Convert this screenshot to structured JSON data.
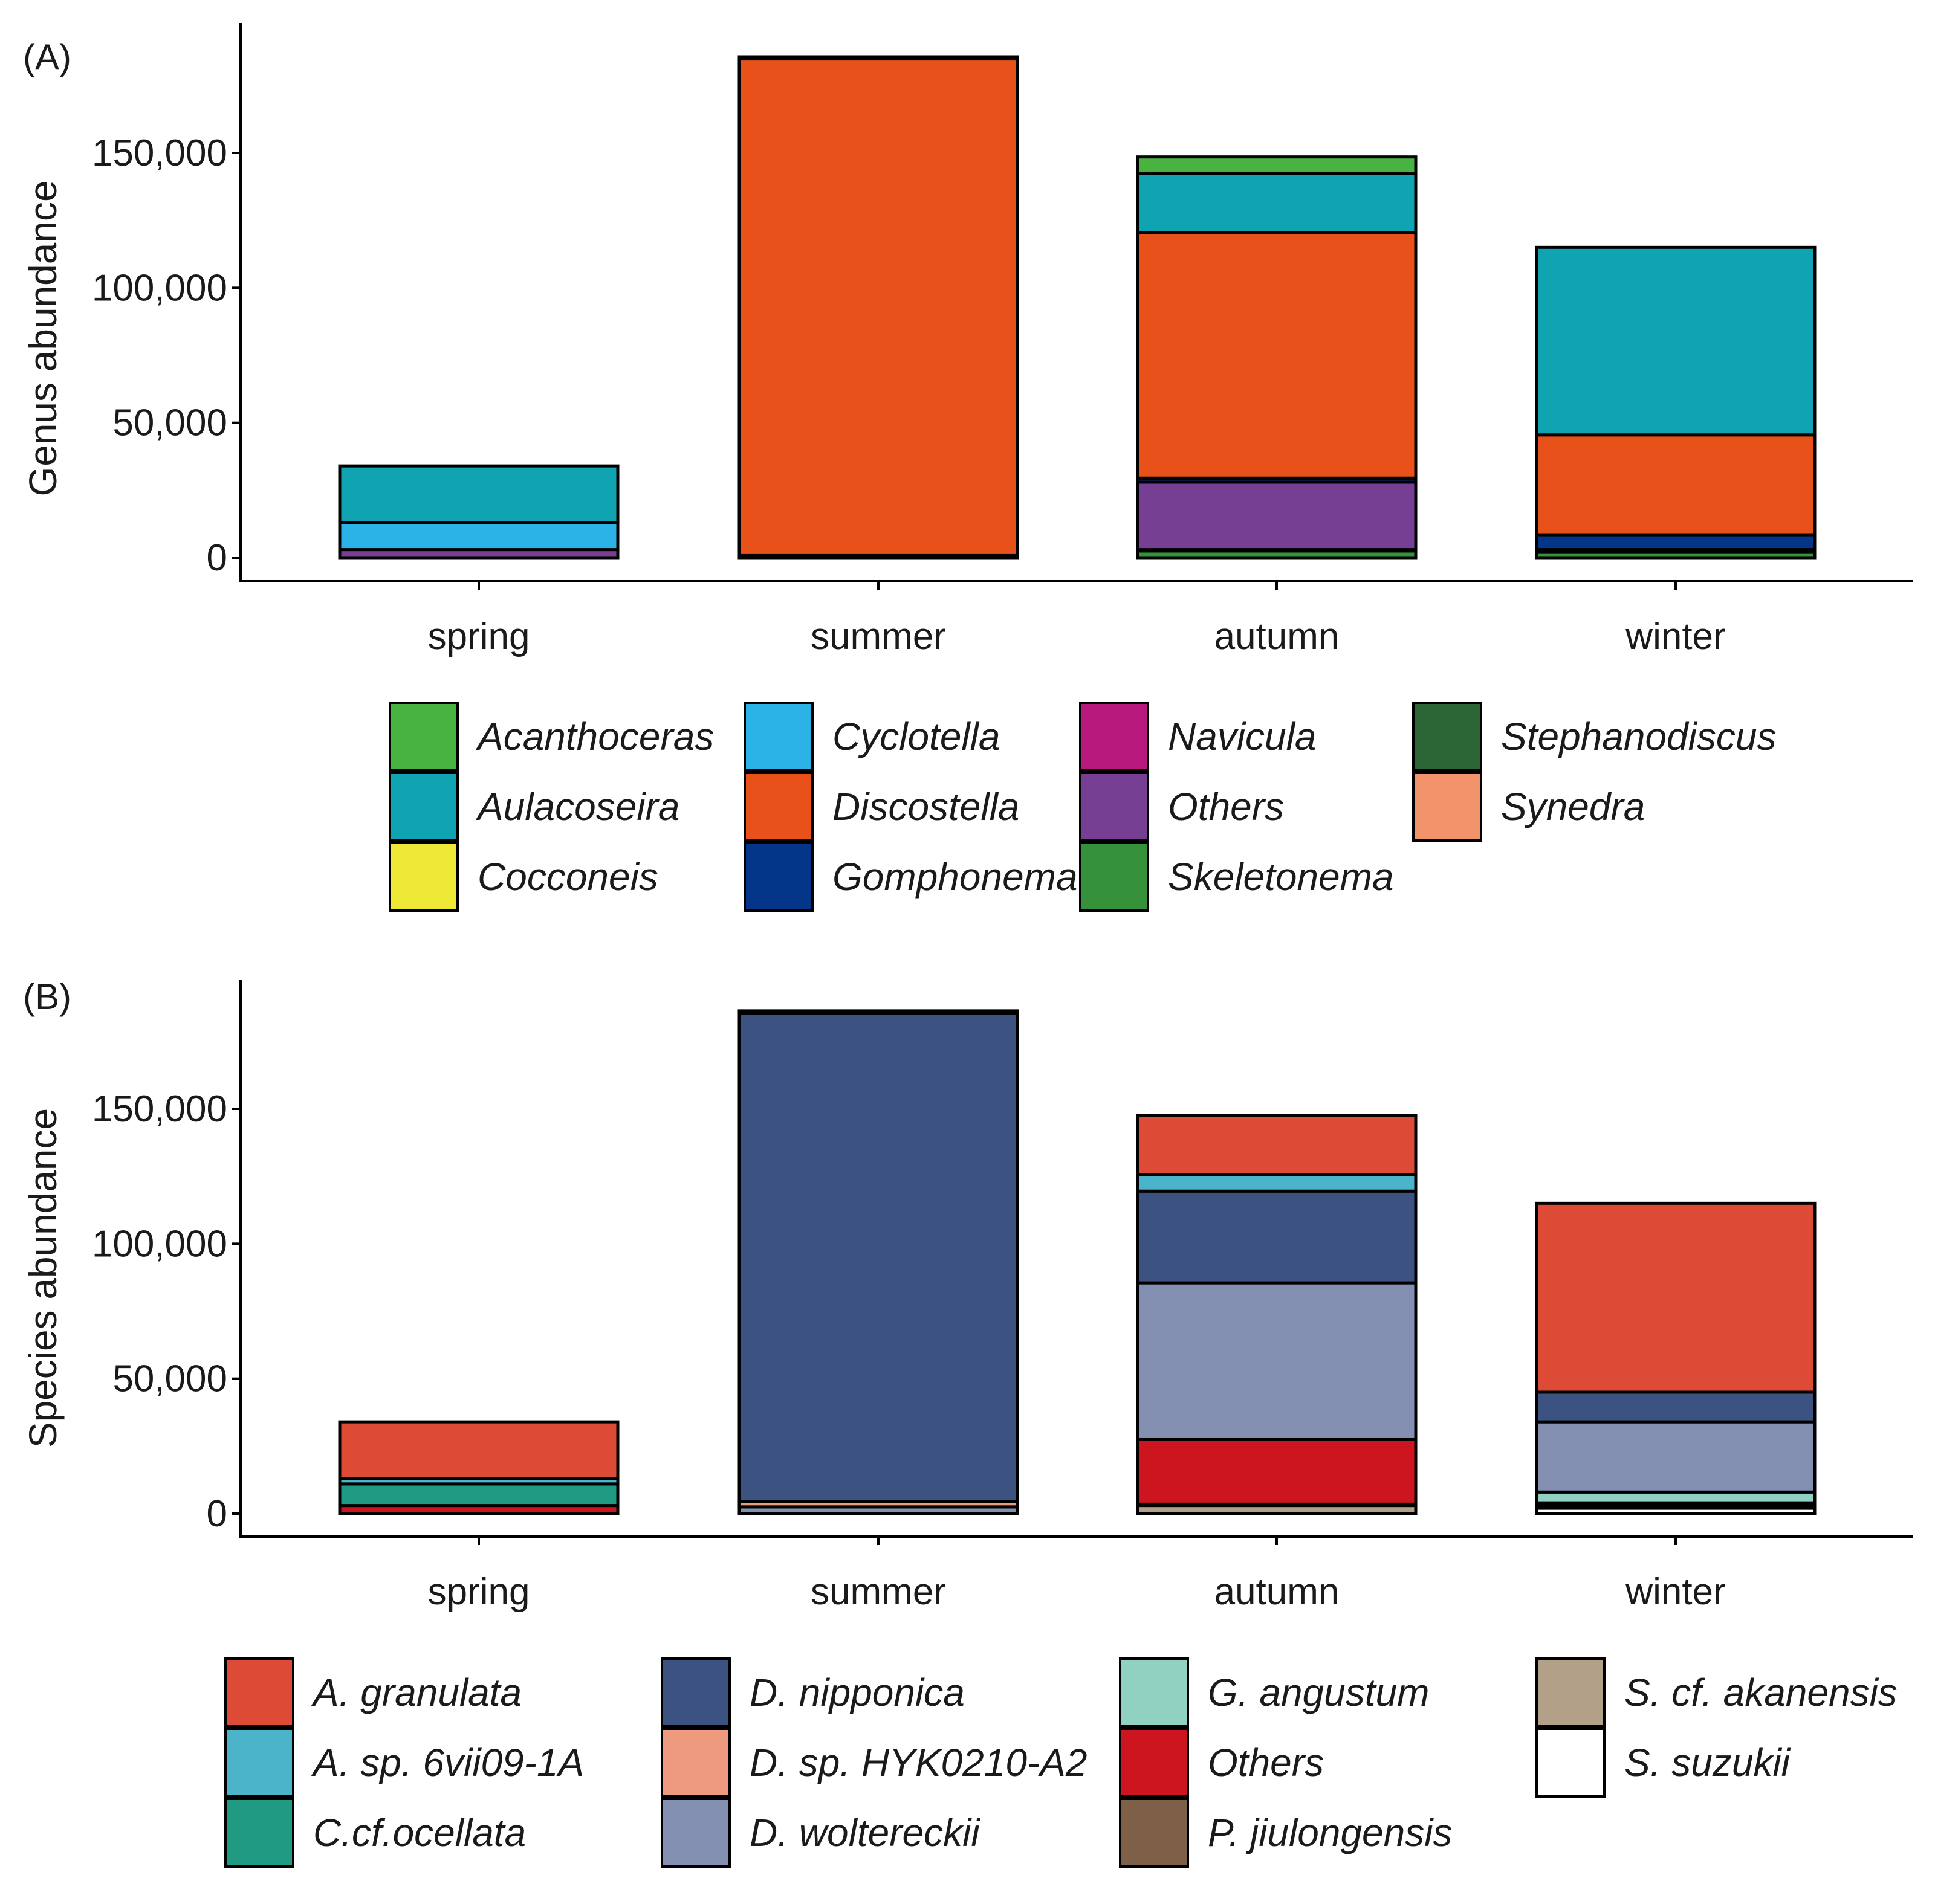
{
  "chart_data": [
    {
      "panel_label": "(A)",
      "type": "bar",
      "stacked": true,
      "ylabel": "Genus abundance",
      "xlabel": "",
      "categories": [
        "spring",
        "summer",
        "autumn",
        "winter"
      ],
      "ylim": [
        0,
        190000
      ],
      "yticks": [
        0,
        50000,
        100000,
        150000
      ],
      "ytick_labels": [
        "0",
        "50,000",
        "100,000",
        "150,000"
      ],
      "grid": false,
      "legend_position": "bottom",
      "series": [
        {
          "name": "Skeletonema",
          "color": "#35913A",
          "values": [
            0,
            0,
            2500,
            2000
          ]
        },
        {
          "name": "Stephanodiscus",
          "color": "#2B6535",
          "values": [
            0,
            0,
            500,
            500
          ]
        },
        {
          "name": "Others",
          "color": "#773F93",
          "values": [
            3000,
            800,
            25000,
            500
          ]
        },
        {
          "name": "Gomphonema",
          "color": "#033689",
          "values": [
            0,
            0,
            1500,
            5500
          ]
        },
        {
          "name": "Navicula",
          "color": "#B8197D",
          "values": [
            0,
            0,
            0,
            0
          ]
        },
        {
          "name": "Cyclotella",
          "color": "#2BB3E7",
          "values": [
            10000,
            0,
            0,
            0
          ]
        },
        {
          "name": "Discostella",
          "color": "#E85119",
          "values": [
            0,
            184000,
            91000,
            37000
          ]
        },
        {
          "name": "Synedra",
          "color": "#F3936B",
          "values": [
            0,
            0,
            0,
            0
          ]
        },
        {
          "name": "Cocconeis",
          "color": "#EDE936",
          "values": [
            0,
            0,
            0,
            0
          ]
        },
        {
          "name": "Aulacoseira",
          "color": "#10A3B1",
          "values": [
            21000,
            0,
            22000,
            69500
          ]
        },
        {
          "name": "Acanthoceras",
          "color": "#49B342",
          "values": [
            0,
            800,
            6000,
            0
          ]
        }
      ],
      "legend": [
        "Acanthoceras",
        "Aulacoseira",
        "Cocconeis",
        "Cyclotella",
        "Discostella",
        "Gomphonema",
        "Navicula",
        "Others",
        "Skeletonema",
        "Stephanodiscus",
        "Synedra"
      ]
    },
    {
      "panel_label": "(B)",
      "type": "bar",
      "stacked": true,
      "ylabel": "Species abundance",
      "xlabel": "",
      "categories": [
        "spring",
        "summer",
        "autumn",
        "winter"
      ],
      "ylim": [
        0,
        190000
      ],
      "yticks": [
        0,
        50000,
        100000,
        150000
      ],
      "ytick_labels": [
        "0",
        "50,000",
        "100,000",
        "150,000"
      ],
      "grid": false,
      "legend_position": "bottom",
      "series": [
        {
          "name": "S. suzukii",
          "color": "#FFFFFF",
          "values": [
            0,
            0,
            0,
            2000
          ]
        },
        {
          "name": "S. cf. akanensis",
          "color": "#B2A089",
          "values": [
            0,
            0,
            3000,
            1000
          ]
        },
        {
          "name": "P. jiulongensis",
          "color": "#7E6049",
          "values": [
            0,
            0,
            500,
            0
          ]
        },
        {
          "name": "Others",
          "color": "#CC151F",
          "values": [
            3000,
            0,
            24000,
            1000
          ]
        },
        {
          "name": "G. angustum",
          "color": "#91D1C2",
          "values": [
            0,
            0,
            0,
            4000
          ]
        },
        {
          "name": "D. woltereckii",
          "color": "#8390B1",
          "values": [
            0,
            2500,
            58000,
            26000
          ]
        },
        {
          "name": "D. sp. HYK0210-A2",
          "color": "#EE9A7E",
          "values": [
            0,
            2000,
            0,
            0
          ]
        },
        {
          "name": "D. nipponica",
          "color": "#3C5382",
          "values": [
            0,
            181000,
            34000,
            11000
          ]
        },
        {
          "name": "C.cf.ocellata",
          "color": "#209A82",
          "values": [
            8000,
            0,
            0,
            0
          ]
        },
        {
          "name": "A. sp. 6vii09-1A",
          "color": "#4BB4CA",
          "values": [
            2000,
            0,
            6000,
            0
          ]
        },
        {
          "name": "A. granulata",
          "color": "#DD4B36",
          "values": [
            21000,
            800,
            22000,
            70000
          ]
        }
      ],
      "legend": [
        "A. granulata",
        "A. sp. 6vii09-1A",
        "C.cf.ocellata",
        "D. nipponica",
        "D. sp. HYK0210-A2",
        "D. woltereckii",
        "G. angustum",
        "Others",
        "P. jiulongensis",
        "S. cf. akanensis",
        "S. suzukii"
      ]
    }
  ]
}
